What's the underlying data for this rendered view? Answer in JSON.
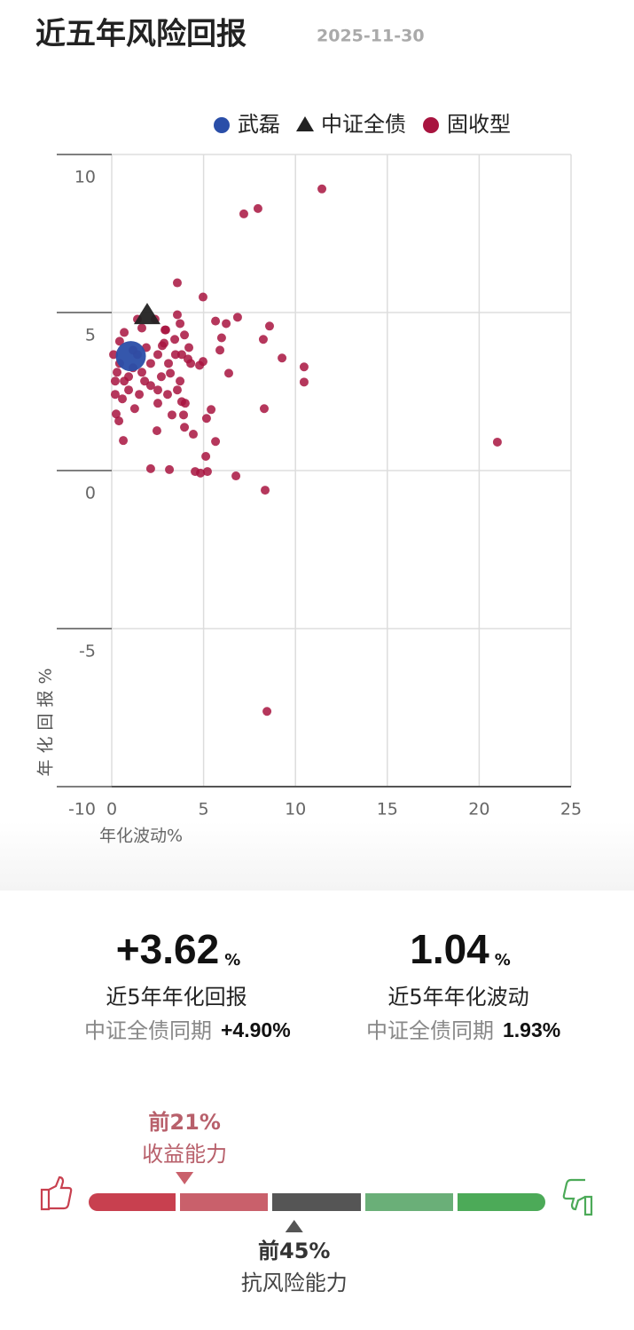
{
  "header": {
    "title": "近五年风险回报",
    "date": "2025-11-30"
  },
  "chart_data": {
    "type": "scatter",
    "x_label": "年化波动%",
    "y_label": "年化回报%",
    "xlim": [
      0,
      25
    ],
    "xticks": [
      0,
      5,
      10,
      15,
      20,
      25
    ],
    "ylim": [
      -10,
      10
    ],
    "yticks": [
      -10,
      -5,
      0,
      5,
      10
    ],
    "grid": true,
    "legend": "top",
    "series": [
      {
        "name": "武磊",
        "color": "#2a4ea8",
        "marker": "circle",
        "marker_size": 17,
        "x": [
          1.04
        ],
        "values": [
          3.62
        ]
      },
      {
        "name": "中证全债",
        "color": "#222222",
        "marker": "triangle",
        "marker_size": 15,
        "x": [
          1.93
        ],
        "values": [
          4.9
        ]
      },
      {
        "name": "固收型",
        "color": "#a8143f",
        "marker": "circle",
        "marker_size": 5,
        "x": [
          11.44,
          7.19,
          7.96,
          3.57,
          4.97,
          5.65,
          6.23,
          6.85,
          8.59,
          8.25,
          5.98,
          5.89,
          9.27,
          10.47,
          10.47,
          6.37,
          4.97,
          4.78,
          8.3,
          5.41,
          5.16,
          5.65,
          5.12,
          4.54,
          4.83,
          5.21,
          6.76,
          8.35,
          20.99,
          8.45,
          2.12,
          3.14,
          0.63,
          0.39,
          0.24,
          2.46,
          3.28,
          3.91,
          3.96,
          4.44,
          3.81,
          4.0,
          3.04,
          2.51,
          1.25,
          3.19,
          3.57,
          3.72,
          4.3,
          4.2,
          3.96,
          3.43,
          3.72,
          3.57,
          2.94,
          2.85,
          2.51,
          1.88,
          2.12,
          2.7,
          1.79,
          1.5,
          0.92,
          0.19,
          0.29,
          0.1,
          0.43,
          0.68,
          1.4,
          1.64,
          2.36,
          2.9,
          1.16,
          1.64,
          0.68,
          0.43,
          1.4,
          2.12,
          3.09,
          3.47,
          3.81,
          4.15,
          2.75,
          1.16,
          0.92,
          0.19,
          0.58,
          2.51
        ],
        "values": [
          8.91,
          8.12,
          8.29,
          5.94,
          5.49,
          4.73,
          4.65,
          4.85,
          4.57,
          4.15,
          4.2,
          3.81,
          3.56,
          3.28,
          2.8,
          3.08,
          3.45,
          3.33,
          1.96,
          1.93,
          1.65,
          0.92,
          0.45,
          -0.03,
          -0.08,
          -0.03,
          -0.17,
          -0.62,
          0.9,
          -7.62,
          0.06,
          0.03,
          0.95,
          1.57,
          1.79,
          1.26,
          1.76,
          1.76,
          1.37,
          1.15,
          2.18,
          2.13,
          2.41,
          2.13,
          1.96,
          3.08,
          2.55,
          2.83,
          3.39,
          3.89,
          4.29,
          4.15,
          4.65,
          4.93,
          4.45,
          4.03,
          3.67,
          3.89,
          3.39,
          2.97,
          2.83,
          2.41,
          2.55,
          2.41,
          3.11,
          3.67,
          4.09,
          4.37,
          4.79,
          4.51,
          4.79,
          4.45,
          3.25,
          3.11,
          2.83,
          3.39,
          3.67,
          2.69,
          3.39,
          3.67,
          3.67,
          3.53,
          3.95,
          3.81,
          2.97,
          2.83,
          2.27,
          2.55
        ]
      }
    ]
  },
  "stats": [
    {
      "value": "+3.62",
      "unit": "%",
      "label": "近5年年化回报",
      "bench_label": "中证全债同期",
      "bench_value": "+4.90%"
    },
    {
      "value": "1.04",
      "unit": "%",
      "label": "近5年年化波动",
      "bench_label": "中证全债同期",
      "bench_value": "1.93%"
    }
  ],
  "ranking": {
    "return": {
      "value": 21,
      "label": "前21%",
      "name": "收益能力"
    },
    "risk": {
      "value": 45,
      "label": "前45%",
      "name": "抗风险能力"
    }
  }
}
